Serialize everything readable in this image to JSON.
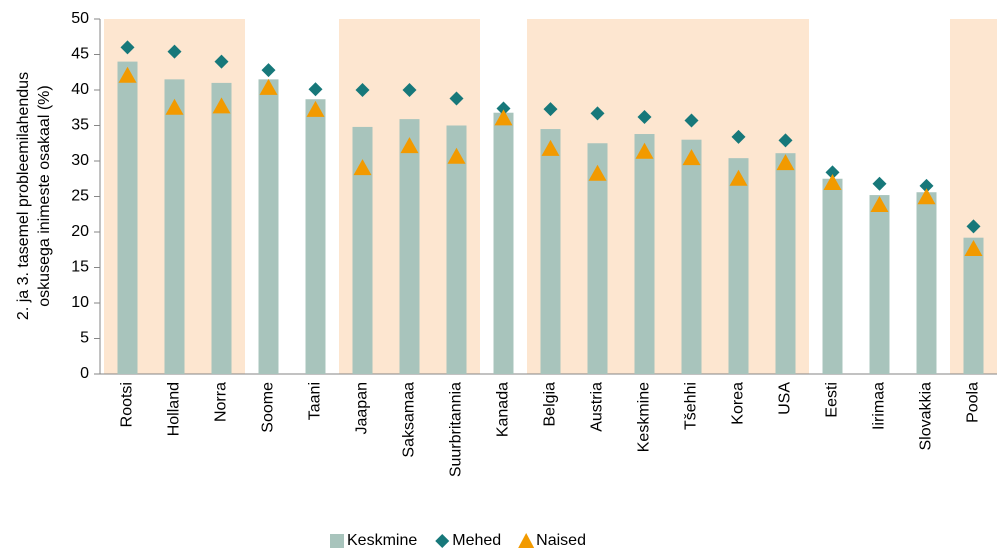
{
  "chart_data": {
    "type": "bar",
    "ylabel": [
      "2. ja 3. tasemel probleemilahendus",
      "oskusega inimeste osakaal (%)"
    ],
    "categories": [
      "Rootsi",
      "Holland",
      "Norra",
      "Soome",
      "Taani",
      "Jaapan",
      "Saksamaa",
      "Suurbritannia",
      "Kanada",
      "Belgia",
      "Austria",
      "Keskmine",
      "Tšehhi",
      "Korea",
      "USA",
      "Eesti",
      "Iirimaa",
      "Slovakkia",
      "Poola"
    ],
    "series": [
      {
        "name": "Keskmine",
        "color": "#a8c4bc",
        "marker": "bar",
        "values": [
          44,
          41.5,
          41,
          41.5,
          38.7,
          34.8,
          35.9,
          35,
          36.8,
          34.5,
          32.5,
          33.8,
          33,
          30.4,
          31.1,
          27.5,
          25.2,
          25.6,
          19.2
        ]
      },
      {
        "name": "Mehed",
        "color": "#17787a",
        "marker": "diamond",
        "values": [
          46,
          45.4,
          44,
          42.8,
          40.1,
          40,
          40,
          38.8,
          37.4,
          37.3,
          36.7,
          36.2,
          35.7,
          33.4,
          32.9,
          28.4,
          26.8,
          26.5,
          20.8
        ]
      },
      {
        "name": "Naised",
        "color": "#f29a00",
        "marker": "triangle",
        "values": [
          42,
          37.5,
          37.7,
          40.3,
          37.2,
          29,
          32.1,
          30.6,
          36,
          31.7,
          28.2,
          31.3,
          30.4,
          27.5,
          29.7,
          26.9,
          23.8,
          24.9,
          17.6
        ]
      }
    ],
    "ylim": [
      0,
      50
    ],
    "yticks": [
      0,
      5,
      10,
      15,
      20,
      25,
      30,
      35,
      40,
      45,
      50
    ],
    "legend": "bottom"
  }
}
